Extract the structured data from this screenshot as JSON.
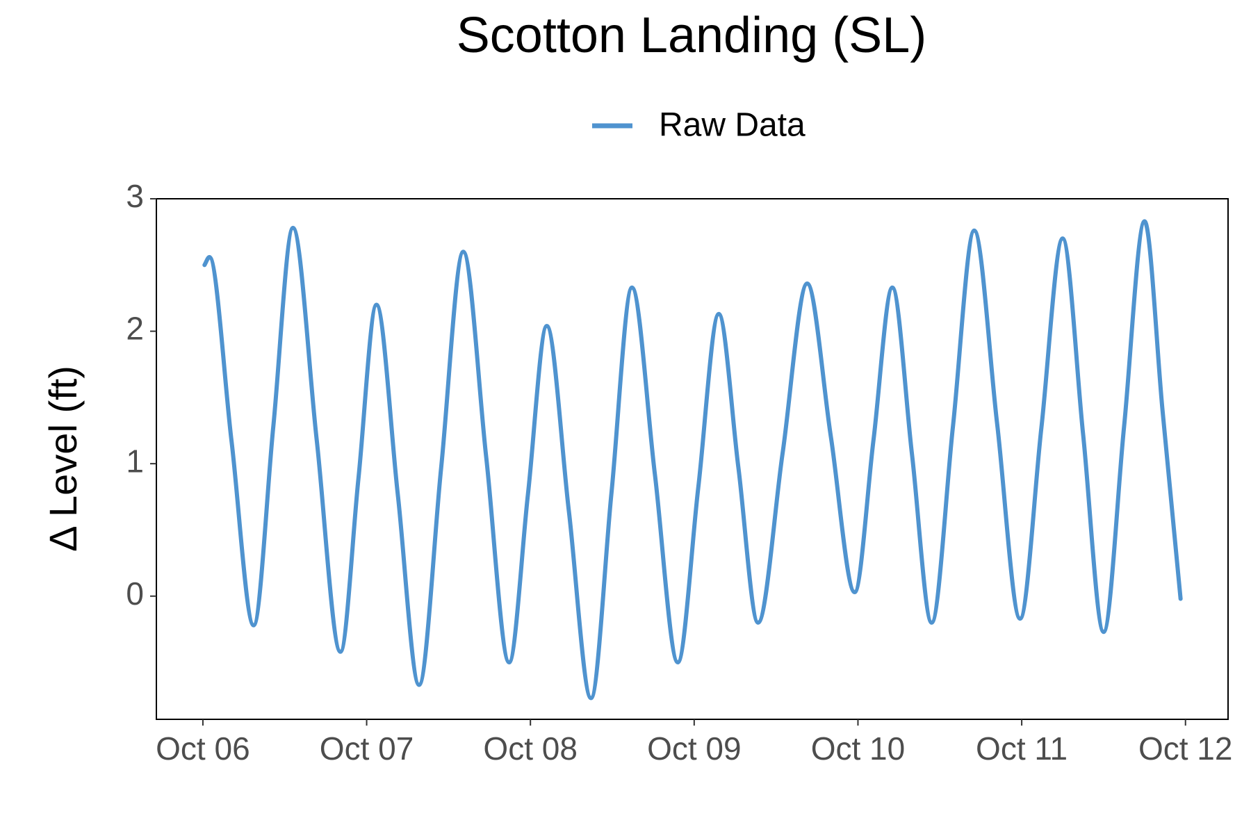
{
  "chart_data": {
    "type": "line",
    "title": "Scotton Landing (SL)",
    "y_label": "Δ Level (ft)",
    "x": [
      6.01,
      6.04,
      6.175,
      6.31,
      6.43,
      6.55,
      6.695,
      6.84,
      6.95,
      7.06,
      7.19,
      7.32,
      7.455,
      7.59,
      7.73,
      7.87,
      7.985,
      8.1,
      8.235,
      8.37,
      8.495,
      8.62,
      8.76,
      8.9,
      9.025,
      9.15,
      9.27,
      9.39,
      9.54,
      9.69,
      9.835,
      9.98,
      10.095,
      10.21,
      10.33,
      10.45,
      10.58,
      10.71,
      10.85,
      10.99,
      11.12,
      11.25,
      11.375,
      11.5,
      11.625,
      11.75,
      11.86,
      11.97
    ],
    "series": [
      {
        "name": "Raw Data",
        "color": "#4f93cf",
        "values": [
          2.5,
          2.56,
          1.17,
          -0.22,
          1.28,
          2.78,
          1.18,
          -0.42,
          0.89,
          2.2,
          0.77,
          -0.67,
          0.97,
          2.6,
          1.05,
          -0.5,
          0.77,
          2.04,
          0.64,
          -0.77,
          0.78,
          2.33,
          0.92,
          -0.5,
          0.82,
          2.13,
          0.97,
          -0.2,
          1.08,
          2.36,
          1.2,
          0.03,
          1.18,
          2.33,
          1.07,
          -0.2,
          1.28,
          2.76,
          1.3,
          -0.17,
          1.27,
          2.7,
          1.22,
          -0.27,
          1.28,
          2.83,
          1.4,
          -0.02
        ]
      }
    ],
    "xlim": [
      5.716,
      12.26
    ],
    "xticks": [
      {
        "value": 6,
        "label": "Oct 06"
      },
      {
        "value": 7,
        "label": "Oct 07"
      },
      {
        "value": 8,
        "label": "Oct 08"
      },
      {
        "value": 9,
        "label": "Oct 09"
      },
      {
        "value": 10,
        "label": "Oct 10"
      },
      {
        "value": 11,
        "label": "Oct 11"
      },
      {
        "value": 12,
        "label": "Oct 12"
      }
    ],
    "ylim": [
      -0.93,
      3
    ],
    "yticks": [
      0,
      1,
      2,
      3
    ],
    "grid": false,
    "legend": "top"
  }
}
